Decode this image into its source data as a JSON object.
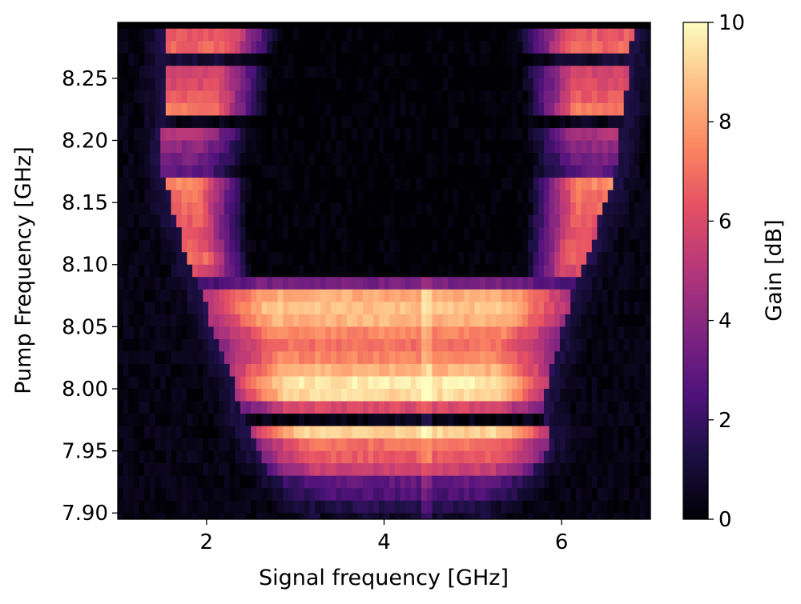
{
  "chart_data": {
    "type": "heatmap",
    "title": "",
    "xlabel": "Signal frequency [GHz]",
    "ylabel": "Pump Frequency [GHz]",
    "colorbar_label": "Gain [dB]",
    "xlim": [
      1.0,
      7.0
    ],
    "ylim": [
      7.895,
      8.295
    ],
    "zlim": [
      0,
      10
    ],
    "colormap": "magma",
    "x_ticks": [
      "2",
      "4",
      "6"
    ],
    "x_tick_values": [
      2,
      4,
      6
    ],
    "y_ticks": [
      "7.90",
      "7.95",
      "8.00",
      "8.05",
      "8.10",
      "8.15",
      "8.20",
      "8.25"
    ],
    "y_tick_values": [
      7.9,
      7.95,
      8.0,
      8.05,
      8.1,
      8.15,
      8.2,
      8.25
    ],
    "colorbar_ticks": [
      "0",
      "2",
      "4",
      "6",
      "8",
      "10"
    ],
    "colorbar_tick_values": [
      0,
      2,
      4,
      6,
      8,
      10
    ],
    "grid": false,
    "pump_rows": [
      {
        "pump": 8.285,
        "x_low": 1.55,
        "x_high": 6.8,
        "gain": 6.5
      },
      {
        "pump": 8.275,
        "x_low": 1.55,
        "x_high": 6.78,
        "gain": 6.8
      },
      {
        "pump": 8.265,
        "x_low": 1.55,
        "x_high": 6.76,
        "gain": 0.9
      },
      {
        "pump": 8.255,
        "x_low": 1.55,
        "x_high": 6.75,
        "gain": 5.8
      },
      {
        "pump": 8.245,
        "x_low": 1.55,
        "x_high": 6.73,
        "gain": 6.0
      },
      {
        "pump": 8.235,
        "x_low": 1.55,
        "x_high": 6.72,
        "gain": 6.5
      },
      {
        "pump": 8.225,
        "x_low": 1.55,
        "x_high": 6.7,
        "gain": 7.2
      },
      {
        "pump": 8.215,
        "x_low": 1.55,
        "x_high": 6.68,
        "gain": 0.5
      },
      {
        "pump": 8.205,
        "x_low": 1.5,
        "x_high": 6.66,
        "gain": 4.8
      },
      {
        "pump": 8.195,
        "x_low": 1.5,
        "x_high": 6.64,
        "gain": 4.0
      },
      {
        "pump": 8.185,
        "x_low": 1.5,
        "x_high": 6.62,
        "gain": 3.5
      },
      {
        "pump": 8.175,
        "x_low": 1.5,
        "x_high": 6.6,
        "gain": 3.0
      },
      {
        "pump": 8.165,
        "x_low": 1.55,
        "x_high": 6.55,
        "gain": 7.5
      },
      {
        "pump": 8.155,
        "x_low": 1.58,
        "x_high": 6.52,
        "gain": 7.0
      },
      {
        "pump": 8.145,
        "x_low": 1.6,
        "x_high": 6.48,
        "gain": 6.8
      },
      {
        "pump": 8.135,
        "x_low": 1.65,
        "x_high": 6.42,
        "gain": 6.5
      },
      {
        "pump": 8.125,
        "x_low": 1.7,
        "x_high": 6.38,
        "gain": 6.2
      },
      {
        "pump": 8.115,
        "x_low": 1.75,
        "x_high": 6.32,
        "gain": 6.5
      },
      {
        "pump": 8.105,
        "x_low": 1.8,
        "x_high": 6.28,
        "gain": 6.8
      },
      {
        "pump": 8.095,
        "x_low": 1.85,
        "x_high": 6.22,
        "gain": 6.0
      },
      {
        "pump": 8.085,
        "x_low": 1.9,
        "x_high": 6.18,
        "gain": 3.5
      },
      {
        "pump": 8.075,
        "x_low": 1.95,
        "x_high": 6.12,
        "gain": 8.3
      },
      {
        "pump": 8.065,
        "x_low": 2.0,
        "x_high": 6.08,
        "gain": 8.8
      },
      {
        "pump": 8.055,
        "x_low": 2.05,
        "x_high": 6.02,
        "gain": 8.5
      },
      {
        "pump": 8.045,
        "x_low": 2.1,
        "x_high": 5.98,
        "gain": 7.5
      },
      {
        "pump": 8.035,
        "x_low": 2.15,
        "x_high": 5.95,
        "gain": 7.0
      },
      {
        "pump": 8.025,
        "x_low": 2.2,
        "x_high": 5.92,
        "gain": 7.5
      },
      {
        "pump": 8.015,
        "x_low": 2.25,
        "x_high": 5.88,
        "gain": 8.5
      },
      {
        "pump": 8.005,
        "x_low": 2.3,
        "x_high": 5.85,
        "gain": 9.6
      },
      {
        "pump": 7.995,
        "x_low": 2.35,
        "x_high": 5.82,
        "gain": 9.3
      },
      {
        "pump": 7.985,
        "x_low": 2.4,
        "x_high": 5.8,
        "gain": 6.0
      },
      {
        "pump": 7.975,
        "x_low": 2.45,
        "x_high": 5.82,
        "gain": 0.3
      },
      {
        "pump": 7.965,
        "x_low": 2.5,
        "x_high": 5.88,
        "gain": 9.2
      },
      {
        "pump": 7.955,
        "x_low": 2.55,
        "x_high": 5.85,
        "gain": 7.0
      },
      {
        "pump": 7.945,
        "x_low": 2.6,
        "x_high": 5.8,
        "gain": 6.5
      },
      {
        "pump": 7.935,
        "x_low": 2.7,
        "x_high": 5.7,
        "gain": 5.5
      },
      {
        "pump": 7.925,
        "x_low": 2.8,
        "x_high": 5.6,
        "gain": 3.0
      },
      {
        "pump": 7.915,
        "x_low": 2.95,
        "x_high": 5.45,
        "gain": 2.5
      },
      {
        "pump": 7.905,
        "x_low": 3.1,
        "x_high": 5.3,
        "gain": 1.5
      },
      {
        "pump": 7.895,
        "x_low": 3.3,
        "x_high": 5.1,
        "gain": 0.8
      }
    ]
  }
}
